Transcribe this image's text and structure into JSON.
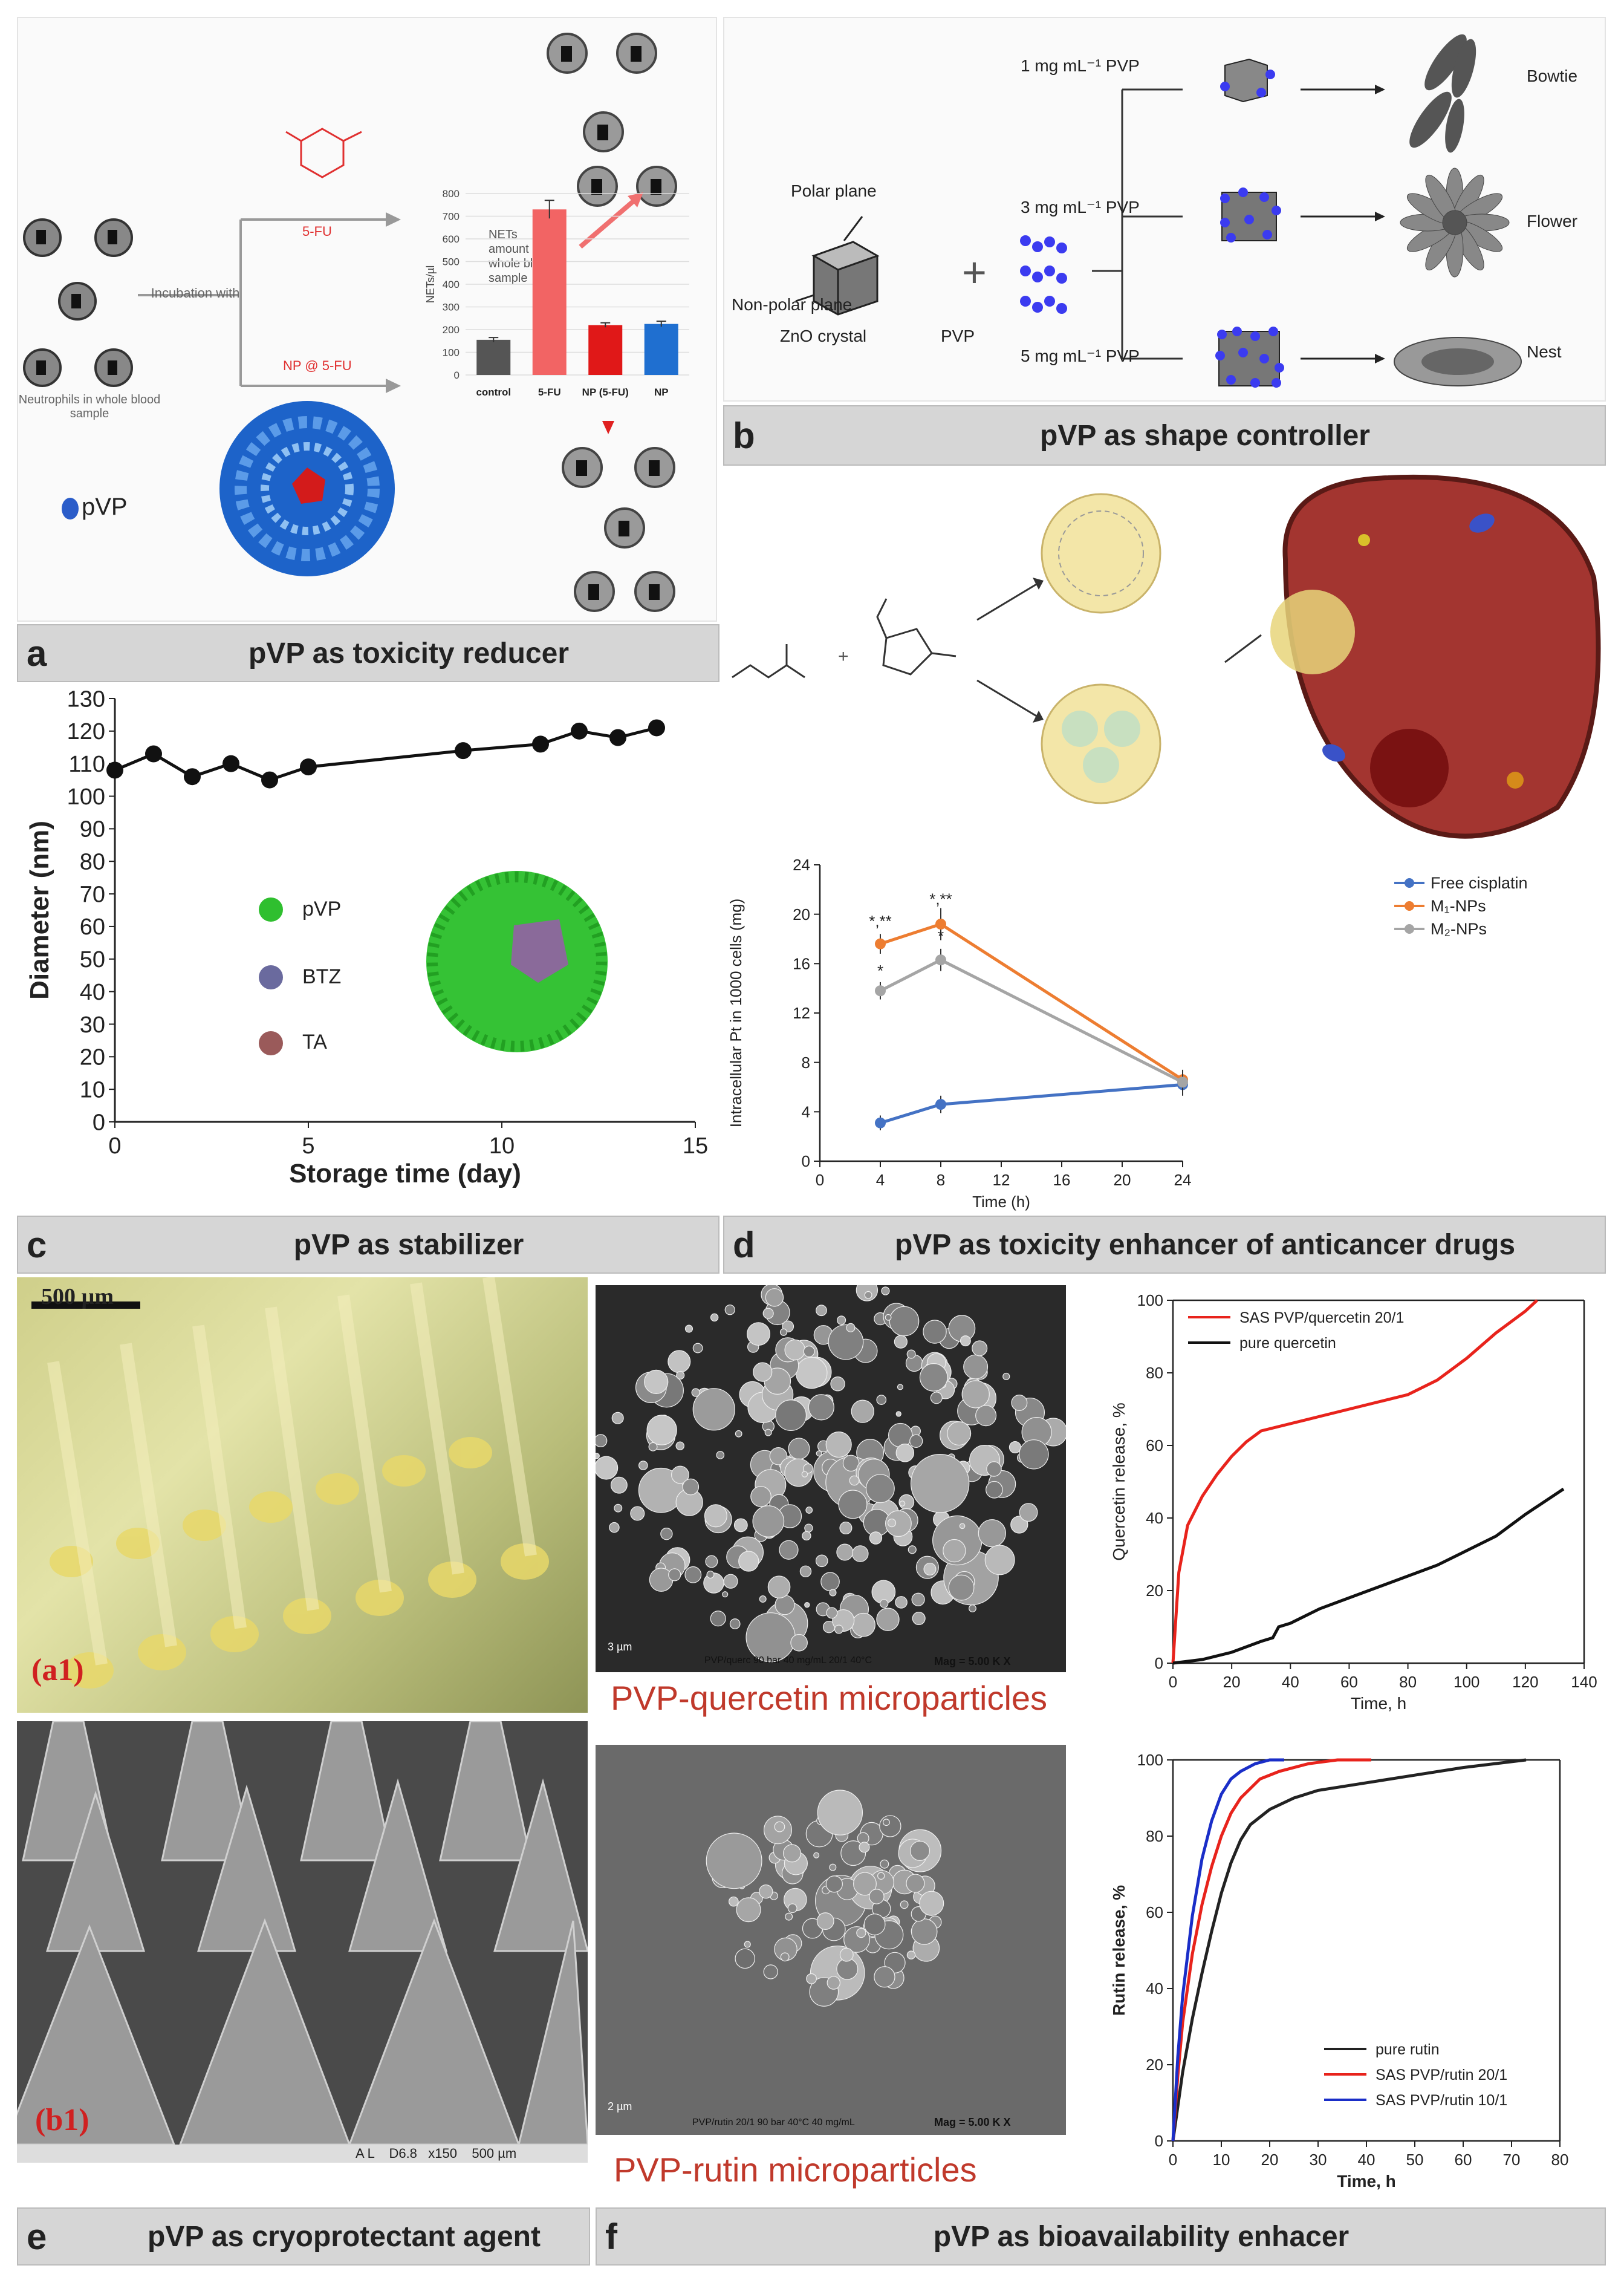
{
  "panel_a": {
    "letter": "a",
    "title": "pVP as toxicity reducer",
    "neutrophils_label": "Neutrophils in whole blood sample",
    "incubation_label": "Incubation with",
    "fu_label": "5-FU",
    "np_label": "NP @ 5-FU",
    "legend_label": "pVP",
    "chart_note": "NETs amount in whole blood sample"
  },
  "panel_b": {
    "letter": "b",
    "title": "pVP as shape controller",
    "polar": "Polar plane",
    "nonpolar": "Non-polar plane",
    "zno": "ZnO crystal",
    "pvp": "PVP",
    "conc1": "1 mg mL⁻¹ PVP",
    "conc2": "3 mg mL⁻¹ PVP",
    "conc3": "5 mg mL⁻¹ PVP",
    "shape1": "Bowtie",
    "shape2": "Flower",
    "shape3": "Nest"
  },
  "panel_c": {
    "letter": "c",
    "title": "pVP as stabilizer",
    "legend": [
      "pVP",
      "BTZ",
      "TA"
    ]
  },
  "panel_d": {
    "letter": "d",
    "title": "pVP as toxicity enhancer of anticancer drugs"
  },
  "panel_e": {
    "letter": "e",
    "title": "pVP as cryoprotectant agent",
    "scale1": "500 µm",
    "label_a1": "(a1)",
    "label_b1": "(b1)",
    "sem_footer": "A L    D6.8   x150    500 µm"
  },
  "panel_f": {
    "letter": "f",
    "title": "pVP as bioavailability enhacer",
    "caption1": "PVP-quercetin microparticles",
    "caption2": "PVP-rutin microparticles",
    "sem1_scale": "3 µm",
    "sem1_info": "PVP/querc 90 bar 40 mg/mL 20/1 40°C",
    "sem1_mag": "Mag =   5.00 K X",
    "sem2_scale": "2 µm",
    "sem2_info": "PVP/rutin 20/1 90 bar 40°C 40 mg/mL",
    "sem2_mag": "Mag =   5.00 K X"
  },
  "chart_data": [
    {
      "id": "nets",
      "type": "bar",
      "categories": [
        "control",
        "5-FU",
        "NP (5-FU)",
        "NP"
      ],
      "values": [
        155,
        730,
        220,
        225
      ],
      "errors": [
        10,
        40,
        10,
        12
      ],
      "colors": [
        "#555555",
        "#f26464",
        "#e01818",
        "#1f6fd0"
      ],
      "ylabel": "NETs/µl",
      "ylim": [
        0,
        800
      ],
      "yticks": [
        0,
        100,
        200,
        300,
        400,
        500,
        600,
        700,
        800
      ]
    },
    {
      "id": "diameter",
      "type": "line",
      "xlabel": "Storage time (day)",
      "ylabel": "Diameter (nm)",
      "xlim": [
        0,
        15
      ],
      "ylim": [
        0,
        130
      ],
      "xticks": [
        0,
        5,
        10,
        15
      ],
      "yticks": [
        0,
        10,
        20,
        30,
        40,
        50,
        60,
        70,
        80,
        90,
        100,
        110,
        120,
        130
      ],
      "x": [
        0,
        1,
        2,
        3,
        4,
        5,
        9,
        11,
        12,
        13,
        14
      ],
      "y": [
        108,
        113,
        106,
        110,
        105,
        109,
        114,
        116,
        120,
        118,
        121
      ]
    },
    {
      "id": "cisplatin",
      "type": "line",
      "xlabel": "Time (h)",
      "ylabel": "Intracellular Pt in 1000 cells (mg)",
      "xlim": [
        0,
        24
      ],
      "ylim": [
        0,
        24
      ],
      "xticks": [
        0,
        4,
        8,
        12,
        16,
        20,
        24
      ],
      "yticks": [
        0,
        4,
        8,
        12,
        16,
        20,
        24
      ],
      "series": [
        {
          "name": "Free cisplatin",
          "color": "#4472c4",
          "x": [
            4,
            8,
            24
          ],
          "y": [
            3.1,
            4.6,
            6.2
          ],
          "err": [
            0.6,
            0.7,
            0.9
          ]
        },
        {
          "name": "M₁-NPs",
          "color": "#ed7d31",
          "x": [
            4,
            8,
            24
          ],
          "y": [
            17.6,
            19.2,
            6.6
          ],
          "err": [
            0.8,
            1.3,
            0.8
          ]
        },
        {
          "name": "M₂-NPs",
          "color": "#a5a5a5",
          "x": [
            4,
            8,
            24
          ],
          "y": [
            13.8,
            16.3,
            6.4
          ],
          "err": [
            0.7,
            0.9,
            1.0
          ]
        }
      ],
      "annotations": [
        "*,**",
        "*",
        "*,**",
        "*"
      ]
    },
    {
      "id": "quercetin",
      "type": "line",
      "xlabel": "Time, h",
      "ylabel": "Quercetin release, %",
      "xlim": [
        0,
        140
      ],
      "ylim": [
        0,
        100
      ],
      "xticks": [
        0,
        20,
        40,
        60,
        80,
        100,
        120,
        140
      ],
      "yticks": [
        0,
        20,
        40,
        60,
        80,
        100
      ],
      "series": [
        {
          "name": "SAS PVP/quercetin 20/1",
          "color": "#e8231c",
          "x": [
            0,
            2,
            5,
            10,
            15,
            20,
            25,
            30,
            35,
            40,
            50,
            60,
            70,
            80,
            90,
            100,
            110,
            120,
            124
          ],
          "y": [
            0,
            25,
            38,
            46,
            52,
            57,
            61,
            64,
            65,
            66,
            68,
            70,
            72,
            74,
            78,
            84,
            91,
            97,
            100
          ]
        },
        {
          "name": "pure quercetin",
          "color": "#111111",
          "x": [
            0,
            10,
            20,
            30,
            34,
            36,
            40,
            50,
            60,
            70,
            80,
            90,
            100,
            110,
            120,
            133
          ],
          "y": [
            0,
            1,
            3,
            6,
            7,
            10,
            11,
            15,
            18,
            21,
            24,
            27,
            31,
            35,
            41,
            48
          ]
        }
      ]
    },
    {
      "id": "rutin",
      "type": "line",
      "xlabel": "Time, h",
      "ylabel": "Rutin release, %",
      "xlim": [
        0,
        80
      ],
      "ylim": [
        0,
        100
      ],
      "xticks": [
        0,
        10,
        20,
        30,
        40,
        50,
        60,
        70,
        80
      ],
      "yticks": [
        0,
        20,
        40,
        60,
        80,
        100
      ],
      "series": [
        {
          "name": "pure rutin",
          "color": "#222222",
          "x": [
            0,
            2,
            4,
            6,
            8,
            10,
            12,
            14,
            16,
            20,
            25,
            30,
            40,
            50,
            60,
            73
          ],
          "y": [
            0,
            18,
            32,
            44,
            55,
            65,
            73,
            79,
            83,
            87,
            90,
            92,
            94,
            96,
            98,
            100
          ]
        },
        {
          "name": "SAS PVP/rutin 20/1",
          "color": "#e8231c",
          "x": [
            0,
            1,
            2,
            4,
            6,
            8,
            10,
            12,
            14,
            18,
            22,
            28,
            34,
            41
          ],
          "y": [
            0,
            17,
            31,
            49,
            62,
            72,
            80,
            86,
            90,
            95,
            97,
            99,
            100,
            100
          ]
        },
        {
          "name": "SAS PVP/rutin 10/1",
          "color": "#1a2ec8",
          "x": [
            0,
            1,
            2,
            4,
            6,
            8,
            10,
            12,
            14,
            17,
            20,
            23
          ],
          "y": [
            0,
            22,
            38,
            59,
            74,
            84,
            91,
            95,
            97,
            99,
            100,
            100
          ]
        }
      ]
    }
  ]
}
